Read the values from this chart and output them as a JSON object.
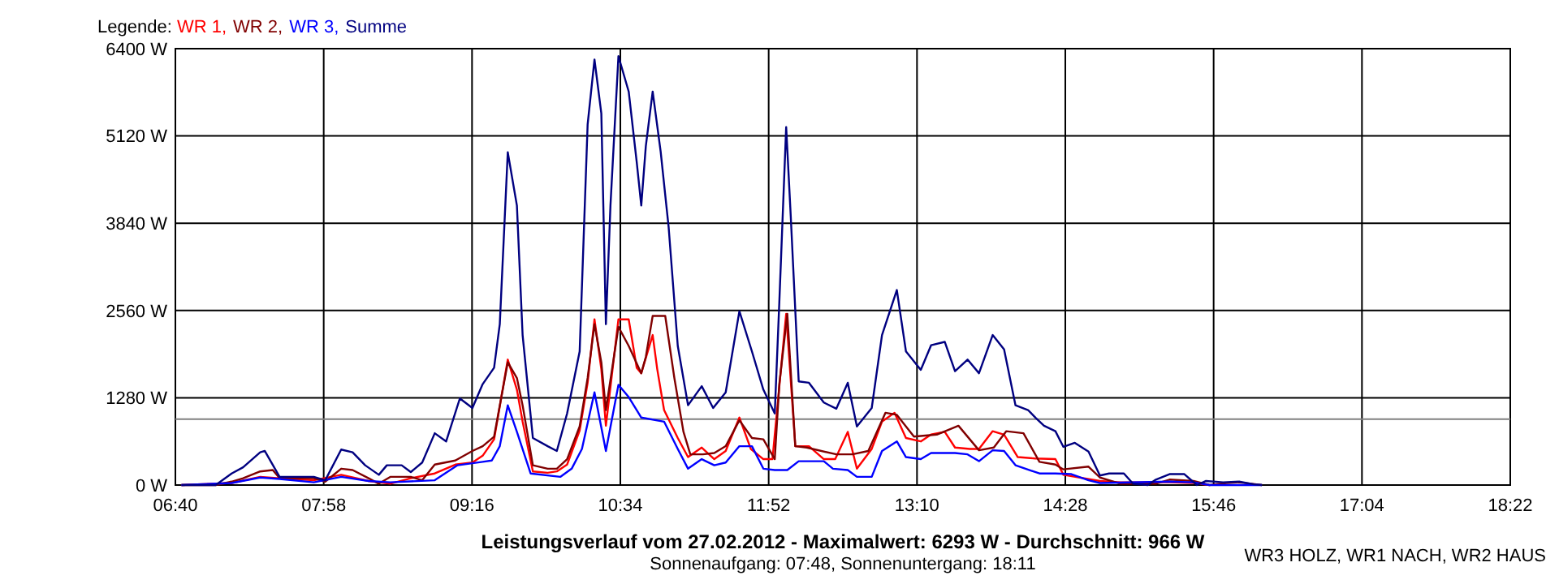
{
  "chart_data": {
    "type": "line",
    "title": "Leistungsverlauf vom 27.02.2012 - Maximalwert: 6293 W - Durchschnitt: 966 W",
    "subtitle": "Sonnenaufgang: 07:48, Sonnenuntergang: 18:11",
    "legend_title": "Legende:",
    "legend": "top left",
    "grid": true,
    "marker": "none",
    "line_style": "solid",
    "annotations": [
      "WR3 HOLZ, WR1 NACH, WR2 HAUS"
    ],
    "xlim": [
      6.6667,
      18.3667
    ],
    "xticks": [
      {
        "value": 6.6667,
        "label": "06:40"
      },
      {
        "value": 7.9667,
        "label": "07:58"
      },
      {
        "value": 9.2667,
        "label": "09:16"
      },
      {
        "value": 10.5667,
        "label": "10:34"
      },
      {
        "value": 11.8667,
        "label": "11:52"
      },
      {
        "value": 13.1667,
        "label": "13:10"
      },
      {
        "value": 14.4667,
        "label": "14:28"
      },
      {
        "value": 15.7667,
        "label": "15:46"
      },
      {
        "value": 17.0667,
        "label": "17:04"
      },
      {
        "value": 18.3667,
        "label": "18:22"
      }
    ],
    "ylim": [
      0,
      6400
    ],
    "yticks": [
      {
        "value": 0,
        "label": "0 W"
      },
      {
        "value": 1280,
        "label": "1280 W"
      },
      {
        "value": 2560,
        "label": "2560 W"
      },
      {
        "value": 3840,
        "label": "3840 W"
      },
      {
        "value": 5120,
        "label": "5120 W"
      },
      {
        "value": 6400,
        "label": "6400 W"
      }
    ],
    "ref_lines": [
      {
        "axis": "y",
        "value": 966,
        "color": "#808080"
      }
    ],
    "series": [
      {
        "name": "WR 1,",
        "color": "#ff0000",
        "x": [
          6.72,
          7.16,
          7.41,
          7.58,
          7.88,
          8.12,
          8.36,
          8.55,
          8.73,
          8.94,
          9.12,
          9.27,
          9.36,
          9.46,
          9.58,
          9.66,
          9.71,
          9.8,
          9.93,
          10.01,
          10.1,
          10.21,
          10.28,
          10.34,
          10.4,
          10.44,
          10.55,
          10.64,
          10.71,
          10.75,
          10.85,
          10.89,
          10.95,
          11.07,
          11.16,
          11.28,
          11.39,
          11.49,
          11.61,
          11.71,
          11.82,
          11.9,
          12.02,
          12.1,
          12.22,
          12.35,
          12.45,
          12.56,
          12.64,
          12.77,
          12.86,
          12.97,
          13.07,
          13.2,
          13.29,
          13.41,
          13.5,
          13.63,
          13.71,
          13.83,
          13.93,
          14.05,
          14.2,
          14.38,
          14.45,
          14.77,
          14.95,
          15.38,
          15.59,
          15.73
        ],
        "values": [
          0,
          30,
          120,
          100,
          70,
          150,
          60,
          20,
          100,
          170,
          300,
          330,
          430,
          670,
          1840,
          1400,
          930,
          200,
          180,
          200,
          300,
          800,
          1500,
          2430,
          1700,
          870,
          2430,
          2430,
          1720,
          1640,
          2200,
          1700,
          1100,
          690,
          410,
          550,
          380,
          500,
          990,
          530,
          380,
          380,
          2510,
          570,
          570,
          380,
          380,
          780,
          240,
          530,
          930,
          1060,
          690,
          640,
          740,
          780,
          550,
          530,
          530,
          790,
          740,
          410,
          390,
          380,
          150,
          60,
          40,
          40,
          30,
          0
        ]
      },
      {
        "name": "WR 2,",
        "color": "#800000",
        "x": [
          6.72,
          7.02,
          7.16,
          7.26,
          7.41,
          7.52,
          7.58,
          7.88,
          7.98,
          8.12,
          8.22,
          8.36,
          8.45,
          8.55,
          8.73,
          8.83,
          8.94,
          9.12,
          9.27,
          9.36,
          9.46,
          9.58,
          9.66,
          9.71,
          9.8,
          9.93,
          10.01,
          10.1,
          10.21,
          10.28,
          10.34,
          10.4,
          10.44,
          10.55,
          10.64,
          10.75,
          10.79,
          10.85,
          10.96,
          11.04,
          11.12,
          11.18,
          11.29,
          11.39,
          11.49,
          11.61,
          11.72,
          11.82,
          11.92,
          11.96,
          12.03,
          12.1,
          12.2,
          12.46,
          12.6,
          12.74,
          12.89,
          12.99,
          13.14,
          13.34,
          13.53,
          13.71,
          13.84,
          13.95,
          14.1,
          14.24,
          14.38,
          14.45,
          14.67,
          14.77,
          14.95,
          15.26,
          15.38,
          15.59,
          15.73,
          15.88,
          15.99,
          16.19
        ],
        "values": [
          0,
          0,
          50,
          100,
          200,
          220,
          100,
          100,
          50,
          240,
          220,
          100,
          20,
          120,
          120,
          70,
          300,
          360,
          500,
          570,
          710,
          1800,
          1570,
          1170,
          290,
          240,
          240,
          380,
          860,
          1570,
          2360,
          1800,
          1100,
          2320,
          2040,
          1640,
          1880,
          2480,
          2480,
          1570,
          780,
          450,
          450,
          470,
          570,
          950,
          690,
          670,
          380,
          1480,
          2510,
          570,
          550,
          450,
          450,
          500,
          1060,
          1030,
          710,
          740,
          870,
          510,
          550,
          790,
          760,
          340,
          300,
          230,
          270,
          110,
          20,
          20,
          80,
          60,
          0,
          30,
          40,
          0
        ]
      },
      {
        "name": "WR 3,",
        "color": "#0000ff",
        "x": [
          6.72,
          7.16,
          7.41,
          7.58,
          7.88,
          8.12,
          8.36,
          8.55,
          8.94,
          9.14,
          9.36,
          9.44,
          9.51,
          9.58,
          9.66,
          9.78,
          10.04,
          10.14,
          10.23,
          10.34,
          10.44,
          10.55,
          10.64,
          10.75,
          10.95,
          11.07,
          11.16,
          11.28,
          11.39,
          11.49,
          11.61,
          11.72,
          11.82,
          11.92,
          12.03,
          12.13,
          12.35,
          12.43,
          12.56,
          12.64,
          12.77,
          12.86,
          12.99,
          13.07,
          13.2,
          13.29,
          13.5,
          13.61,
          13.71,
          13.83,
          13.93,
          14.03,
          14.24,
          14.38,
          14.52,
          14.67,
          14.77,
          15.38,
          15.59,
          15.73,
          16.19
        ],
        "values": [
          0,
          30,
          110,
          90,
          40,
          120,
          60,
          40,
          70,
          290,
          340,
          360,
          570,
          1170,
          780,
          170,
          120,
          240,
          530,
          1360,
          500,
          1470,
          1290,
          990,
          930,
          530,
          240,
          380,
          290,
          330,
          570,
          570,
          240,
          220,
          220,
          350,
          350,
          240,
          220,
          120,
          120,
          500,
          640,
          410,
          380,
          470,
          470,
          450,
          350,
          510,
          500,
          290,
          170,
          170,
          160,
          70,
          30,
          50,
          40,
          0,
          0
        ]
      },
      {
        "name": "Summe",
        "color": "#000080",
        "x": [
          6.72,
          7.02,
          7.16,
          7.26,
          7.41,
          7.45,
          7.58,
          7.88,
          7.98,
          8.12,
          8.22,
          8.33,
          8.45,
          8.52,
          8.65,
          8.73,
          8.83,
          8.94,
          9.04,
          9.16,
          9.27,
          9.36,
          9.46,
          9.51,
          9.58,
          9.66,
          9.71,
          9.8,
          9.93,
          10.01,
          10.1,
          10.21,
          10.28,
          10.34,
          10.4,
          10.44,
          10.48,
          10.55,
          10.64,
          10.71,
          10.75,
          10.79,
          10.85,
          10.92,
          10.99,
          11.07,
          11.16,
          11.28,
          11.38,
          11.49,
          11.61,
          11.72,
          11.82,
          11.92,
          11.96,
          12.02,
          12.06,
          12.13,
          12.22,
          12.35,
          12.46,
          12.56,
          12.64,
          12.77,
          12.86,
          12.99,
          13.07,
          13.2,
          13.29,
          13.41,
          13.5,
          13.61,
          13.71,
          13.83,
          13.93,
          14.03,
          14.14,
          14.21,
          14.28,
          14.38,
          14.45,
          14.55,
          14.67,
          14.77,
          14.85,
          14.98,
          15.06,
          15.19,
          15.26,
          15.38,
          15.51,
          15.62,
          15.7,
          15.85,
          15.99,
          16.12,
          16.19
        ],
        "values": [
          0,
          0,
          170,
          260,
          480,
          500,
          120,
          120,
          70,
          520,
          480,
          290,
          150,
          290,
          290,
          190,
          330,
          760,
          640,
          1270,
          1130,
          1480,
          1720,
          2360,
          4880,
          4100,
          2200,
          690,
          570,
          500,
          1050,
          1960,
          5290,
          6240,
          5450,
          2360,
          4100,
          6290,
          5770,
          4740,
          4100,
          4970,
          5770,
          4890,
          3780,
          2040,
          1170,
          1450,
          1130,
          1360,
          2550,
          1960,
          1400,
          1050,
          2680,
          5250,
          3950,
          1520,
          1500,
          1210,
          1120,
          1500,
          860,
          1130,
          2200,
          2860,
          1960,
          1690,
          2050,
          2100,
          1670,
          1840,
          1640,
          2200,
          1990,
          1170,
          1100,
          980,
          870,
          790,
          560,
          620,
          490,
          140,
          170,
          170,
          20,
          0,
          80,
          160,
          160,
          0,
          60,
          40,
          50,
          10,
          0
        ]
      }
    ]
  }
}
